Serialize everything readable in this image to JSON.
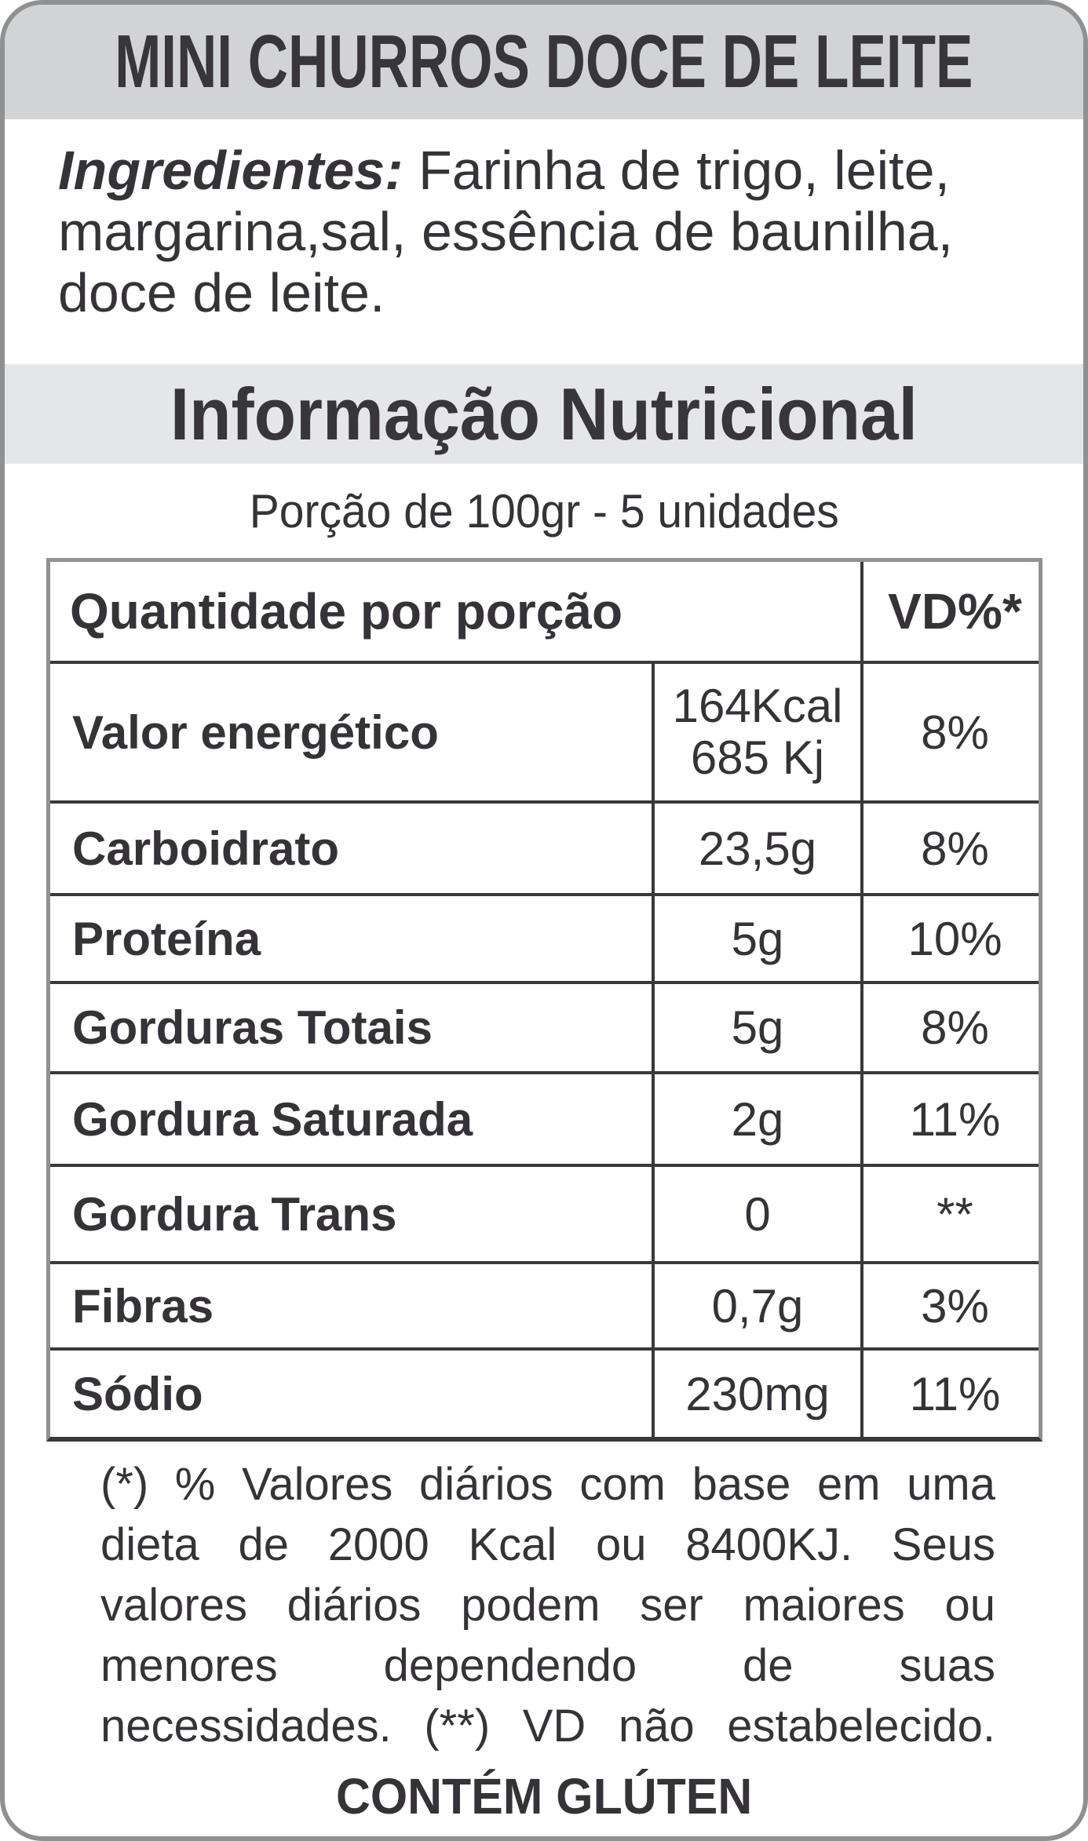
{
  "header": {
    "title": "MINI CHURROS DOCE DE LEITE"
  },
  "ingredients": {
    "label": "Ingredientes:",
    "line1_rest": " Farinha de trigo, leite,",
    "line2": "margarina,sal, essência de baunilha,",
    "line3": "doce de leite."
  },
  "nutrition": {
    "section_title": "Informação Nutricional",
    "serving_line": "Porção de 100gr - 5 unidades",
    "table": {
      "header": {
        "quantity_col": "Quantidade por porção",
        "dv_col": "VD%*"
      },
      "rows": [
        {
          "label": "Valor energético",
          "value": "164Kcal",
          "value2": "685 Kj",
          "dv": "8%"
        },
        {
          "label": "Carboidrato",
          "value": "23,5g",
          "dv": "8%"
        },
        {
          "label": "Proteína",
          "value": "5g",
          "dv": "10%"
        },
        {
          "label": "Gorduras Totais",
          "value": "5g",
          "dv": "8%"
        },
        {
          "label": "Gordura Saturada",
          "value": "2g",
          "dv": "11%"
        },
        {
          "label": "Gordura Trans",
          "value": "0",
          "dv": "**"
        },
        {
          "label": "Fibras",
          "value": "0,7g",
          "dv": "3%"
        },
        {
          "label": "Sódio",
          "value": "230mg",
          "dv": "11%"
        }
      ]
    }
  },
  "footnote": {
    "lines": [
      "(*) % Valores diários com base em uma",
      "dieta de 2000 Kcal ou 8400KJ. Seus",
      "valores diários podem ser maiores ou",
      "menores dependendo de suas",
      "necessidades. (**) VD não estabelecido."
    ]
  },
  "footer": {
    "allergen": "CONTÉM GLÚTEN"
  },
  "colors": {
    "title_band": "#d2d3d5",
    "section_band": "#e5e6e8",
    "text": "#363338",
    "table_line": "#3a383c",
    "outer_border": "#8e9092"
  }
}
